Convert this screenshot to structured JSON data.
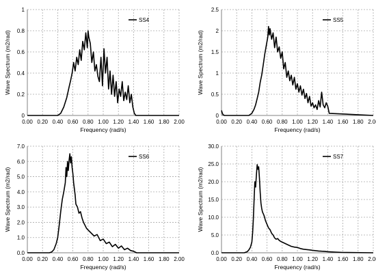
{
  "chart_data": [
    {
      "type": "line",
      "xlabel": "Frequency (rad/s)",
      "ylabel": "Wave Spectrum (m2/rad)",
      "xlim": [
        0,
        2.0
      ],
      "ylim": [
        0,
        1.0
      ],
      "xticks": [
        "0.00",
        "0.20",
        "0.40",
        "0.60",
        "0.80",
        "1.00",
        "1.20",
        "1.40",
        "1.60",
        "1.80",
        "2.00"
      ],
      "yticks": [
        "0",
        "0.2",
        "0.4",
        "0.6",
        "0.8",
        "1"
      ],
      "grid": "dashed",
      "legend_placement": "top-right",
      "series": [
        {
          "name": "SS4",
          "color": "#000000",
          "x": [
            0.0,
            0.4,
            0.44,
            0.48,
            0.52,
            0.55,
            0.57,
            0.59,
            0.61,
            0.63,
            0.65,
            0.67,
            0.69,
            0.71,
            0.73,
            0.75,
            0.77,
            0.79,
            0.8,
            0.81,
            0.83,
            0.85,
            0.87,
            0.89,
            0.91,
            0.93,
            0.95,
            0.97,
            0.99,
            1.01,
            1.03,
            1.05,
            1.07,
            1.09,
            1.11,
            1.13,
            1.15,
            1.17,
            1.19,
            1.21,
            1.23,
            1.25,
            1.27,
            1.29,
            1.31,
            1.33,
            1.35,
            1.37,
            1.39,
            1.41,
            1.43,
            1.46,
            2.0
          ],
          "y": [
            0,
            0,
            0.02,
            0.08,
            0.17,
            0.27,
            0.33,
            0.4,
            0.5,
            0.42,
            0.55,
            0.48,
            0.62,
            0.52,
            0.7,
            0.62,
            0.78,
            0.64,
            0.8,
            0.74,
            0.68,
            0.5,
            0.6,
            0.42,
            0.48,
            0.37,
            0.32,
            0.55,
            0.28,
            0.63,
            0.4,
            0.55,
            0.25,
            0.42,
            0.2,
            0.38,
            0.18,
            0.32,
            0.12,
            0.25,
            0.18,
            0.32,
            0.14,
            0.22,
            0.15,
            0.28,
            0.12,
            0.2,
            0.08,
            0.02,
            0,
            0,
            0
          ]
        }
      ]
    },
    {
      "type": "line",
      "xlabel": "Frequency (rad/s)",
      "ylabel": "Wave Spectrum (m2/rad)",
      "xlim": [
        0,
        2.0
      ],
      "ylim": [
        0,
        2.5
      ],
      "xticks": [
        "0.00",
        "0.20",
        "0.40",
        "0.60",
        "0.80",
        "1.00",
        "1.20",
        "1.40",
        "1.60",
        "1.80",
        "2.00"
      ],
      "yticks": [
        "0",
        "0.5",
        "1",
        "1.5",
        "2",
        "2.5"
      ],
      "grid": "dashed",
      "legend_placement": "top-right",
      "series": [
        {
          "name": "SS5",
          "color": "#000000",
          "x": [
            0.0,
            0.01,
            0.02,
            0.04,
            0.36,
            0.4,
            0.43,
            0.45,
            0.47,
            0.49,
            0.51,
            0.53,
            0.55,
            0.57,
            0.59,
            0.61,
            0.62,
            0.63,
            0.64,
            0.66,
            0.68,
            0.7,
            0.72,
            0.74,
            0.76,
            0.78,
            0.8,
            0.82,
            0.84,
            0.86,
            0.88,
            0.9,
            0.92,
            0.94,
            0.96,
            0.98,
            1.0,
            1.02,
            1.04,
            1.06,
            1.08,
            1.1,
            1.12,
            1.14,
            1.16,
            1.18,
            1.2,
            1.22,
            1.24,
            1.26,
            1.28,
            1.3,
            1.32,
            1.34,
            1.36,
            1.38,
            1.4,
            1.42,
            2.0
          ],
          "y": [
            0.12,
            0.06,
            0.02,
            0,
            0,
            0.05,
            0.15,
            0.25,
            0.4,
            0.55,
            0.78,
            0.95,
            1.2,
            1.45,
            1.65,
            1.85,
            2.1,
            1.9,
            2.05,
            1.8,
            1.95,
            1.6,
            1.85,
            1.5,
            1.62,
            1.35,
            1.5,
            1.1,
            1.25,
            0.9,
            1.05,
            0.82,
            0.95,
            0.72,
            0.9,
            0.62,
            0.75,
            0.55,
            0.7,
            0.48,
            0.62,
            0.4,
            0.52,
            0.3,
            0.45,
            0.22,
            0.3,
            0.18,
            0.25,
            0.14,
            0.35,
            0.2,
            0.55,
            0.25,
            0.18,
            0.3,
            0.22,
            0.05,
            0
          ]
        }
      ]
    },
    {
      "type": "line",
      "xlabel": "Frequency (rad/s)",
      "ylabel": "Wave Spectrum (m2/rad)",
      "xlim": [
        0,
        2.0
      ],
      "ylim": [
        0,
        7.0
      ],
      "xticks": [
        "0.00",
        "0.20",
        "0.40",
        "0.60",
        "0.80",
        "1.00",
        "1.20",
        "1.40",
        "1.60",
        "1.80",
        "2.00"
      ],
      "yticks": [
        "0.0",
        "1.0",
        "2.0",
        "3.0",
        "4.0",
        "5.0",
        "6.0",
        "7.0"
      ],
      "grid": "dashed",
      "legend_placement": "top-right",
      "series": [
        {
          "name": "SS6",
          "color": "#000000",
          "x": [
            0.0,
            0.29,
            0.32,
            0.35,
            0.38,
            0.4,
            0.42,
            0.44,
            0.46,
            0.48,
            0.5,
            0.51,
            0.52,
            0.53,
            0.54,
            0.55,
            0.56,
            0.57,
            0.58,
            0.59,
            0.6,
            0.61,
            0.62,
            0.63,
            0.64,
            0.66,
            0.68,
            0.7,
            0.72,
            0.74,
            0.76,
            0.78,
            0.8,
            0.84,
            0.88,
            0.92,
            0.96,
            1.0,
            1.04,
            1.08,
            1.12,
            1.16,
            1.2,
            1.24,
            1.28,
            1.32,
            1.36,
            1.4,
            1.44,
            2.0
          ],
          "y": [
            0,
            0,
            0.05,
            0.2,
            0.6,
            1.0,
            1.8,
            2.7,
            3.5,
            4.0,
            4.6,
            5.6,
            5.0,
            6.0,
            5.4,
            6.1,
            6.5,
            5.9,
            6.3,
            5.6,
            5.2,
            4.6,
            4.2,
            3.8,
            3.2,
            3.0,
            2.6,
            2.7,
            2.3,
            2.0,
            1.8,
            1.6,
            1.5,
            1.3,
            1.1,
            1.2,
            0.8,
            0.9,
            0.6,
            0.7,
            0.4,
            0.55,
            0.3,
            0.45,
            0.2,
            0.3,
            0.15,
            0.1,
            0,
            0
          ]
        }
      ]
    },
    {
      "type": "line",
      "xlabel": "Frequency (rad/s)",
      "ylabel": "Wave Spectrum (m2/rad)",
      "xlim": [
        0,
        2.0
      ],
      "ylim": [
        0,
        30.0
      ],
      "xticks": [
        "0.00",
        "0.20",
        "0.40",
        "0.60",
        "0.80",
        "1.00",
        "1.20",
        "1.40",
        "1.60",
        "1.80",
        "2.00"
      ],
      "yticks": [
        "0.0",
        "5.0",
        "10.0",
        "15.0",
        "20.0",
        "25.0",
        "30.0"
      ],
      "grid": "dashed",
      "legend_placement": "top-right",
      "series": [
        {
          "name": "SS7",
          "color": "#000000",
          "x": [
            0.0,
            0.3,
            0.34,
            0.36,
            0.38,
            0.4,
            0.41,
            0.42,
            0.43,
            0.44,
            0.45,
            0.46,
            0.47,
            0.48,
            0.49,
            0.5,
            0.51,
            0.52,
            0.53,
            0.54,
            0.55,
            0.56,
            0.58,
            0.6,
            0.62,
            0.64,
            0.66,
            0.68,
            0.7,
            0.72,
            0.74,
            0.76,
            0.78,
            0.8,
            0.84,
            0.88,
            0.92,
            0.96,
            1.0,
            1.04,
            1.08,
            1.12,
            1.16,
            1.2,
            1.24,
            1.28,
            1.32,
            1.36,
            1.4,
            1.5,
            1.6,
            2.0
          ],
          "y": [
            0,
            0,
            0.3,
            0.8,
            1.5,
            3.0,
            5.5,
            9.5,
            15.0,
            20.0,
            18.5,
            22.0,
            24.8,
            23.5,
            24.2,
            21.0,
            17.0,
            14.0,
            12.5,
            11.5,
            11.0,
            10.5,
            9.0,
            8.0,
            7.0,
            6.5,
            5.5,
            5.0,
            4.2,
            3.8,
            4.0,
            3.5,
            3.2,
            3.0,
            2.6,
            2.2,
            1.8,
            1.6,
            1.5,
            1.2,
            1.0,
            0.9,
            0.8,
            0.7,
            0.6,
            0.5,
            0.45,
            0.4,
            0.3,
            0.2,
            0.1,
            0
          ]
        }
      ]
    }
  ]
}
